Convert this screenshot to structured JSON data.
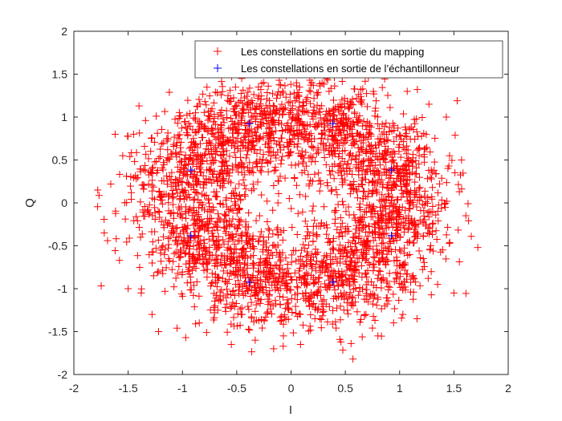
{
  "chart_data": {
    "type": "scatter",
    "title": "",
    "xlabel": "I",
    "ylabel": "Q",
    "xlim": [
      -2,
      2
    ],
    "ylim": [
      -2,
      2
    ],
    "xticks": [
      "-2",
      "-1.5",
      "-1",
      "-0.5",
      "0",
      "0.5",
      "1",
      "1.5",
      "2"
    ],
    "yticks": [
      "-2",
      "-1.5",
      "-1",
      "-0.5",
      "0",
      "0.5",
      "1",
      "1.5",
      "2"
    ],
    "grid": false,
    "legend_position": "top-right",
    "series": [
      {
        "name": "Les constellations en sortie du mapping",
        "color": "#ff0000",
        "marker": "+",
        "values": [
          [
            -1.78,
            0.15
          ],
          [
            -1.72,
            -0.35
          ],
          [
            -1.69,
            -0.44
          ],
          [
            -1.66,
            0.22
          ],
          [
            -1.58,
            -0.67
          ],
          [
            -1.55,
            0.55
          ],
          [
            -1.5,
            -1.0
          ],
          [
            -1.45,
            0.8
          ],
          [
            -1.4,
            1.13
          ],
          [
            -1.62,
            0.8
          ],
          [
            -1.38,
            -1.05
          ],
          [
            -1.34,
            0.96
          ],
          [
            -1.28,
            -1.3
          ],
          [
            -1.22,
            -1.5
          ],
          [
            -1.05,
            -1.46
          ],
          [
            -0.97,
            -1.57
          ],
          [
            -0.72,
            1.58
          ],
          [
            -0.55,
            -1.65
          ],
          [
            -0.33,
            -1.6
          ],
          [
            -0.16,
            -1.7
          ],
          [
            -0.07,
            -1.55
          ],
          [
            0.15,
            1.55
          ],
          [
            0.46,
            -1.62
          ],
          [
            0.57,
            -1.82
          ],
          [
            0.68,
            1.5
          ],
          [
            0.8,
            -1.55
          ],
          [
            1.03,
            -1.3
          ],
          [
            1.07,
            1.3
          ],
          [
            1.16,
            -1.35
          ],
          [
            1.27,
            1.15
          ],
          [
            1.35,
            -0.95
          ],
          [
            1.43,
            1.0
          ],
          [
            1.46,
            0.55
          ],
          [
            1.5,
            -1.05
          ],
          [
            1.53,
            1.19
          ],
          [
            1.55,
            0.13
          ],
          [
            1.57,
            0.5
          ],
          [
            1.61,
            -0.15
          ],
          [
            1.66,
            -0.39
          ],
          [
            1.72,
            -0.52
          ],
          [
            -1.28,
            0.4
          ],
          [
            -1.15,
            0.1
          ],
          [
            -1.2,
            -0.55
          ],
          [
            -1.05,
            0.7
          ],
          [
            -0.95,
            -0.8
          ],
          [
            -0.88,
            1.05
          ],
          [
            -0.7,
            -1.2
          ],
          [
            -0.58,
            1.25
          ],
          [
            -0.45,
            -1.3
          ],
          [
            -0.3,
            1.35
          ],
          [
            -0.1,
            -1.38
          ],
          [
            0.05,
            1.4
          ],
          [
            0.22,
            -1.35
          ],
          [
            0.35,
            1.3
          ],
          [
            0.52,
            -1.25
          ],
          [
            0.65,
            1.2
          ],
          [
            0.8,
            -1.1
          ],
          [
            0.95,
            0.9
          ],
          [
            1.05,
            -0.7
          ],
          [
            1.18,
            0.55
          ]
        ]
      },
      {
        "name": "Les constellations en sortie de l’échantillonneur",
        "color": "#0000ff",
        "marker": "+",
        "values": [
          [
            -0.383,
            0.924
          ],
          [
            0.383,
            0.924
          ],
          [
            0.924,
            0.383
          ],
          [
            0.924,
            -0.383
          ],
          [
            0.383,
            -0.924
          ],
          [
            -0.383,
            -0.924
          ],
          [
            -0.924,
            -0.383
          ],
          [
            -0.924,
            0.383
          ]
        ]
      }
    ]
  }
}
